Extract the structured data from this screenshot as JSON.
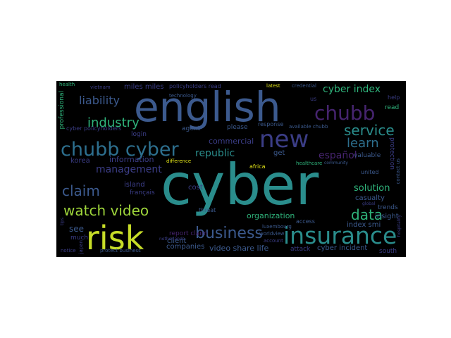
{
  "wordcloud": {
    "colors": {
      "background": "#000000",
      "teal": "#2a8d8c",
      "blue": "#3c5a8e",
      "indigo": "#3b3d86",
      "purple": "#46246f",
      "green": "#2fb37b",
      "lime": "#9fd63b",
      "yellow": "#e2e418"
    },
    "words": [
      "cyber",
      "english",
      "risk",
      "insurance",
      "new",
      "chubb",
      "chubb cyber",
      "business",
      "watch video",
      "service",
      "claim",
      "industry",
      "management",
      "liability",
      "cyber index",
      "learn",
      "data",
      "republic",
      "español",
      "solution",
      "organization",
      "video share life",
      "commercial",
      "information",
      "island",
      "casualty",
      "protection",
      "trends",
      "insight",
      "valuable",
      "united",
      "south",
      "cyber incident",
      "index smi",
      "attack",
      "see",
      "korea",
      "français",
      "much",
      "login",
      "agent",
      "please",
      "client",
      "cost",
      "get",
      "read",
      "help",
      "professional",
      "miles miles",
      "policyholders read",
      "cyber policyholders",
      "technology",
      "health",
      "vietnam",
      "latest",
      "credential",
      "us",
      "response",
      "available chubb",
      "africa",
      "healthcare",
      "community",
      "difference",
      "threat",
      "report claim",
      "protect business",
      "companies",
      "japan",
      "notice",
      "account",
      "luxembourg",
      "access",
      "netherlands",
      "worldview",
      "contact us",
      "global",
      "hospitality",
      "tips"
    ]
  }
}
